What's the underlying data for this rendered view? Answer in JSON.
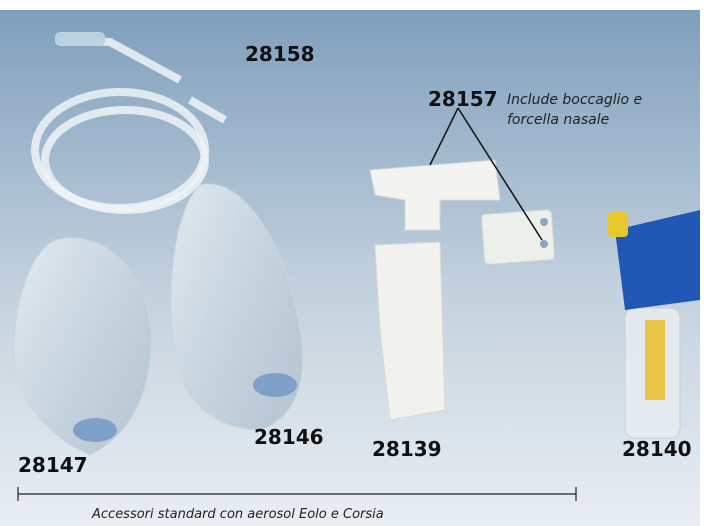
{
  "labels": {
    "tube": "28158",
    "mouthpiece": "28157",
    "mask_child": "28147",
    "mask_adult": "28146",
    "nebulizer": "28139",
    "nebulizer_blue": "28140"
  },
  "note": {
    "line1": "Include boccaglio e",
    "line2": "forcella nasale"
  },
  "caption": "Accessori standard con aerosol Eolo e Corsia"
}
